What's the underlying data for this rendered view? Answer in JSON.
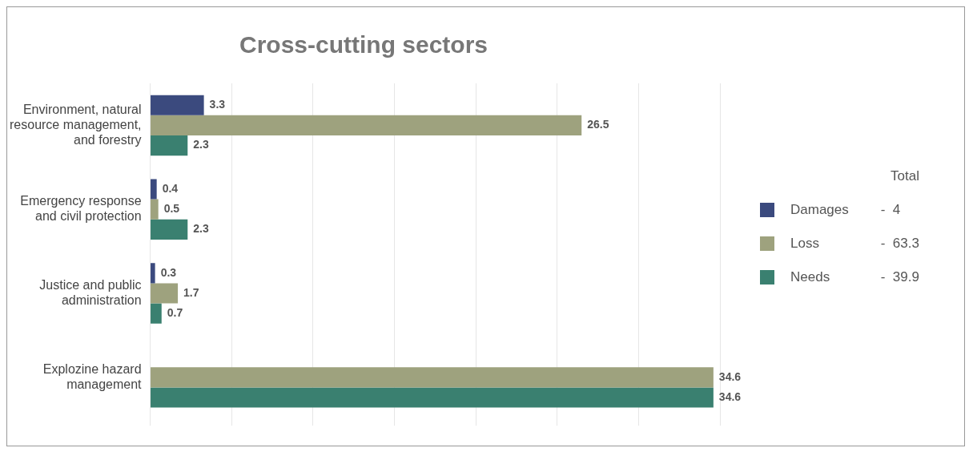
{
  "chart_data": {
    "type": "bar",
    "orientation": "horizontal",
    "title": "Cross-cutting sectors",
    "categories": [
      "Environment, natural resource management, and forestry",
      "Emergency response and civil protection",
      "Justice and public administration",
      "Explozine hazard management"
    ],
    "series": [
      {
        "name": "Damages",
        "color": "#3b4a7e",
        "values": [
          3.3,
          0.4,
          0.3,
          null
        ]
      },
      {
        "name": "Loss",
        "color": "#9ea27e",
        "values": [
          26.5,
          0.5,
          1.7,
          34.6
        ]
      },
      {
        "name": "Needs",
        "color": "#3a8070",
        "values": [
          2.3,
          2.3,
          0.7,
          34.6
        ]
      }
    ],
    "xlim": [
      0,
      35
    ],
    "xticks": [
      {
        "value": 0,
        "label": null
      },
      {
        "value": 5,
        "label": null
      },
      {
        "value": 10,
        "label": null
      },
      {
        "value": 15,
        "label": null
      },
      {
        "value": 20,
        "label": null
      },
      {
        "value": 25,
        "label": null
      },
      {
        "value": 30,
        "label": null
      },
      {
        "value": 35,
        "label": null
      }
    ],
    "tick_labels": "y",
    "grid": "x",
    "data_labels": true,
    "legend": "right",
    "legend_title": "Total",
    "annotations": [
      "-  4",
      "-  63.3",
      "-  39.9"
    ]
  }
}
